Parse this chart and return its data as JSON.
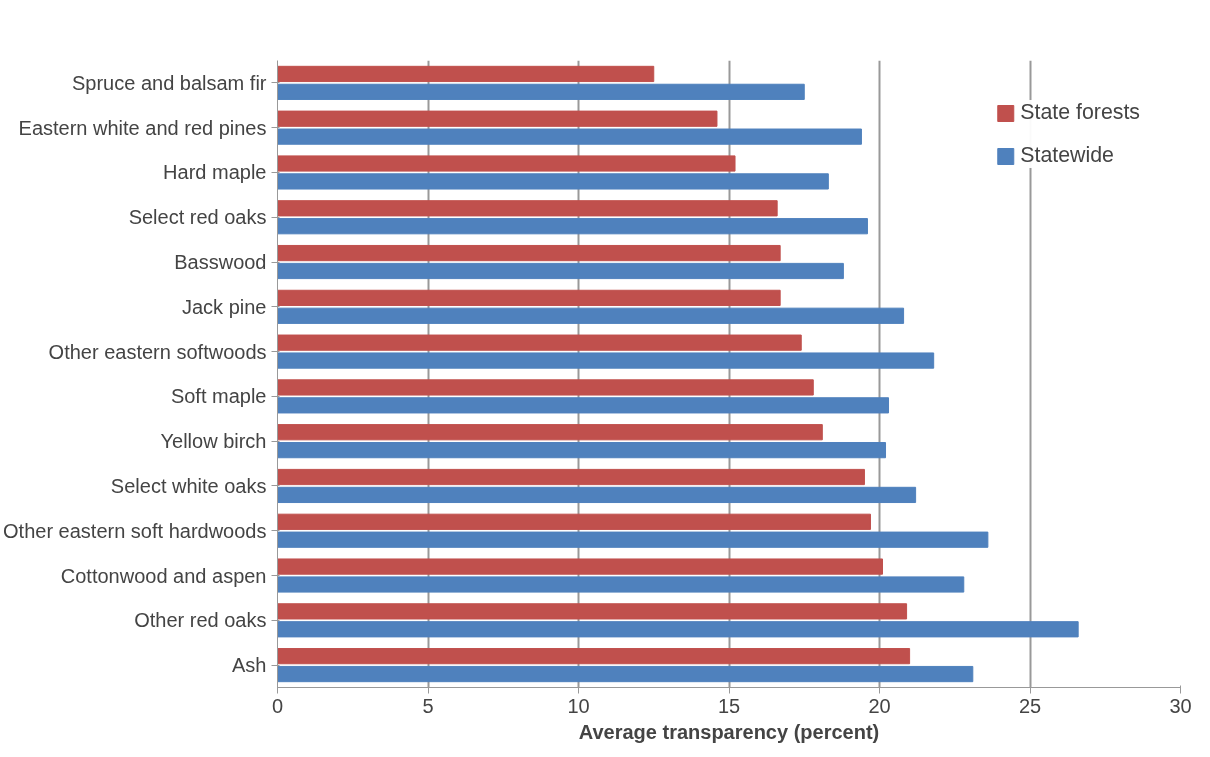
{
  "chart_data": {
    "type": "bar",
    "orientation": "horizontal",
    "xlabel": "Average transparency (percent)",
    "categories": [
      "Spruce and balsam fir",
      "Eastern white and red pines",
      "Hard maple",
      "Select red oaks",
      "Basswood",
      "Jack pine",
      "Other eastern softwoods",
      "Soft maple",
      "Yellow birch",
      "Select white oaks",
      "Other eastern soft hardwoods",
      "Cottonwood and aspen",
      "Other red oaks",
      "Ash"
    ],
    "series": [
      {
        "name": "State forests",
        "color": "#c0504d",
        "values": [
          12.5,
          14.6,
          15.2,
          16.6,
          16.7,
          16.7,
          17.4,
          17.8,
          18.1,
          19.5,
          19.7,
          20.1,
          20.9,
          21.0
        ]
      },
      {
        "name": "Statewide",
        "color": "#4f81bd",
        "values": [
          17.5,
          19.4,
          18.3,
          19.6,
          18.8,
          20.8,
          21.8,
          20.3,
          20.2,
          21.2,
          23.6,
          22.8,
          26.6,
          23.1
        ]
      }
    ],
    "xlim": [
      0,
      30
    ],
    "xticks": [
      0,
      5,
      10,
      15,
      20,
      25,
      30
    ],
    "grid": "x",
    "legend": "right"
  }
}
